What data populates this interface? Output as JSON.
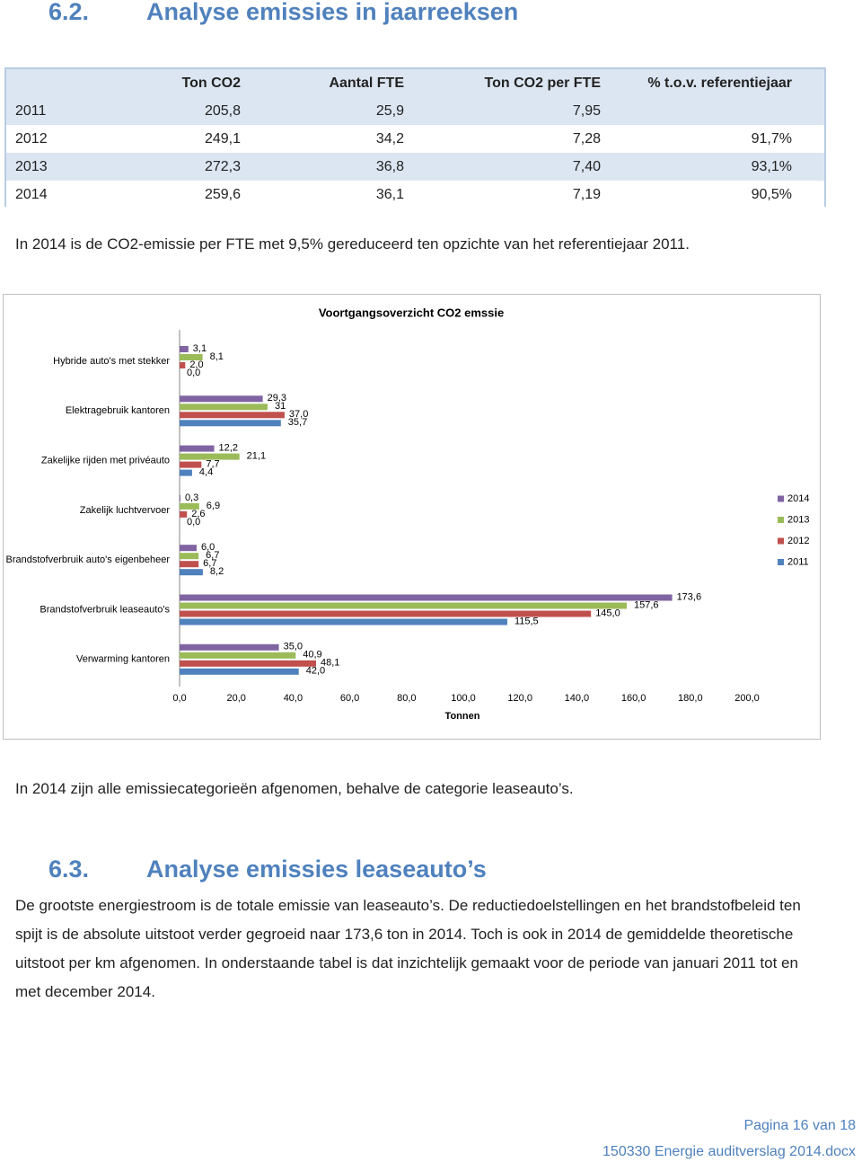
{
  "header": {
    "number": "6.2.",
    "title": "Analyse emissies in jaarreeksen"
  },
  "table": {
    "columns": [
      "Ton CO2",
      "Aantal FTE",
      "Ton CO2 per FTE",
      "% t.o.v. referentiejaar"
    ],
    "rows": [
      [
        "2011",
        "205,8",
        "25,9",
        "7,95"
      ],
      [
        "2012",
        "249,1",
        "34,2",
        "7,28",
        "91,7%"
      ],
      [
        "2013",
        "272,3",
        "36,8",
        "7,40",
        "93,1%"
      ],
      [
        "2014",
        "259,6",
        "36,1",
        "7,19",
        "90,5%"
      ]
    ]
  },
  "paragraphs": [
    "In 2014 is de CO2-emissie per FTE met 9,5% gereduceerd ten opzichte van het referentiejaar 2011.",
    "In 2014 zijn alle emissiecategorieën afgenomen, behalve de categorie leaseauto’s."
  ],
  "chart_data": {
    "type": "hbar",
    "title": "Voortgangsoverzicht CO2 emssie",
    "xlabel": "Tonnen",
    "categories": [
      "Hybride auto's met stekker",
      "Elektragebruik kantoren",
      "Zakelijke rijden met privéauto",
      "Zakelijk luchtvervoer",
      "Brandstofverbruik auto's eigenbeheer",
      "Brandstofverbruik leaseauto's",
      "Verwarming kantoren"
    ],
    "series": [
      {
        "name": "2014",
        "color": "#8064a2",
        "values": [
          3.1,
          29.3,
          12.2,
          0.3,
          6.0,
          173.6,
          35.0
        ],
        "value_labels": [
          "3,1",
          "29,3",
          "12,2",
          "0,3",
          "6,0",
          "173,6",
          "35,0"
        ]
      },
      {
        "name": "2013",
        "color": "#9bbb59",
        "values": [
          8.1,
          31,
          21.1,
          6.9,
          6.7,
          157.6,
          40.9
        ],
        "value_labels": [
          "8,1",
          "31",
          "21,1",
          "6,9",
          "6,7",
          "157,6",
          "40,9"
        ]
      },
      {
        "name": "2012",
        "color": "#c0504d",
        "values": [
          2.0,
          37.0,
          7.7,
          2.6,
          6.7,
          145.0,
          48.1
        ],
        "value_labels": [
          "2,0",
          "37,0",
          "7,7",
          "2,6",
          "6,7",
          "145,0",
          "48,1"
        ]
      },
      {
        "name": "2011",
        "color": "#4f81bd",
        "values": [
          0.0,
          35.7,
          4.4,
          0.0,
          8.2,
          115.5,
          42.0
        ],
        "value_labels": [
          "0,0",
          "35,7",
          "4,4",
          "0,0",
          "8,2",
          "115,5",
          "42,0"
        ]
      }
    ],
    "xlim": [
      0,
      200
    ],
    "xticks": [
      {
        "value": 0,
        "label": "0,0"
      },
      {
        "value": 20,
        "label": "20,0"
      },
      {
        "value": 40,
        "label": "40,0"
      },
      {
        "value": 60,
        "label": "60,0"
      },
      {
        "value": 80,
        "label": "80,0"
      },
      {
        "value": 100,
        "label": "100,0"
      },
      {
        "value": 120,
        "label": "120,0"
      },
      {
        "value": 140,
        "label": "140,0"
      },
      {
        "value": 160,
        "label": "160,0"
      },
      {
        "value": 180,
        "label": "180,0"
      },
      {
        "value": 200,
        "label": "200,0"
      }
    ],
    "legend": "right"
  },
  "section": {
    "number": "6.3.",
    "title": "Analyse emissies leaseauto’s",
    "text": "De grootste energiestroom is de totale emissie van leaseauto’s. De reductiedoelstellingen en het brandstofbeleid ten spijt is de absolute uitstoot verder gegroeid naar 173,6 ton in 2014. Toch is ook in 2014 de gemiddelde theoretische uitstoot per km afgenomen. In onderstaande tabel is dat inzichtelijk gemaakt voor de periode van januari 2011 tot en met december 2014."
  },
  "footer": {
    "page": "Pagina 16 van 18",
    "file": "150330 Energie auditverslag 2014.docx"
  }
}
